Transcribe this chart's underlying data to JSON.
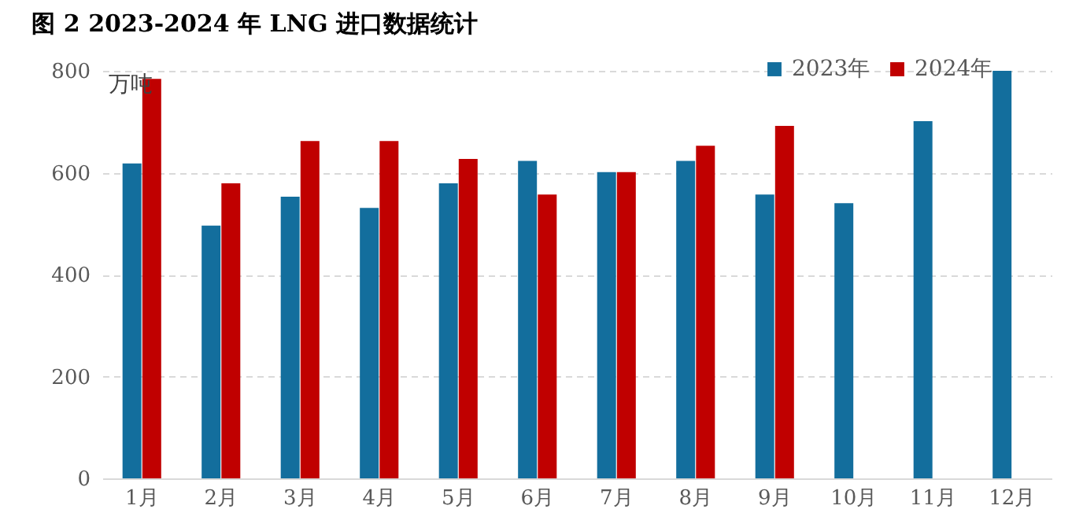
{
  "chart_data": {
    "type": "bar",
    "title": "图 2 2023-2024 年 LNG 进口数据统计",
    "ylabel": "万吨",
    "categories": [
      "1月",
      "2月",
      "3月",
      "4月",
      "5月",
      "6月",
      "7月",
      "8月",
      "9月",
      "10月",
      "11月",
      "12月"
    ],
    "series": [
      {
        "name": "2023年",
        "color": "#136e9d",
        "values": [
          618,
          496,
          553,
          531,
          579,
          623,
          601,
          623,
          557,
          540,
          701,
          800
        ]
      },
      {
        "name": "2024年",
        "color": "#c00000",
        "values": [
          784,
          579,
          662,
          662,
          627,
          557,
          601,
          653,
          692,
          null,
          null,
          null
        ]
      }
    ],
    "ylim": [
      0,
      800
    ],
    "yticks": [
      0,
      200,
      400,
      600,
      800
    ],
    "grid": "y",
    "legend": "top right"
  }
}
